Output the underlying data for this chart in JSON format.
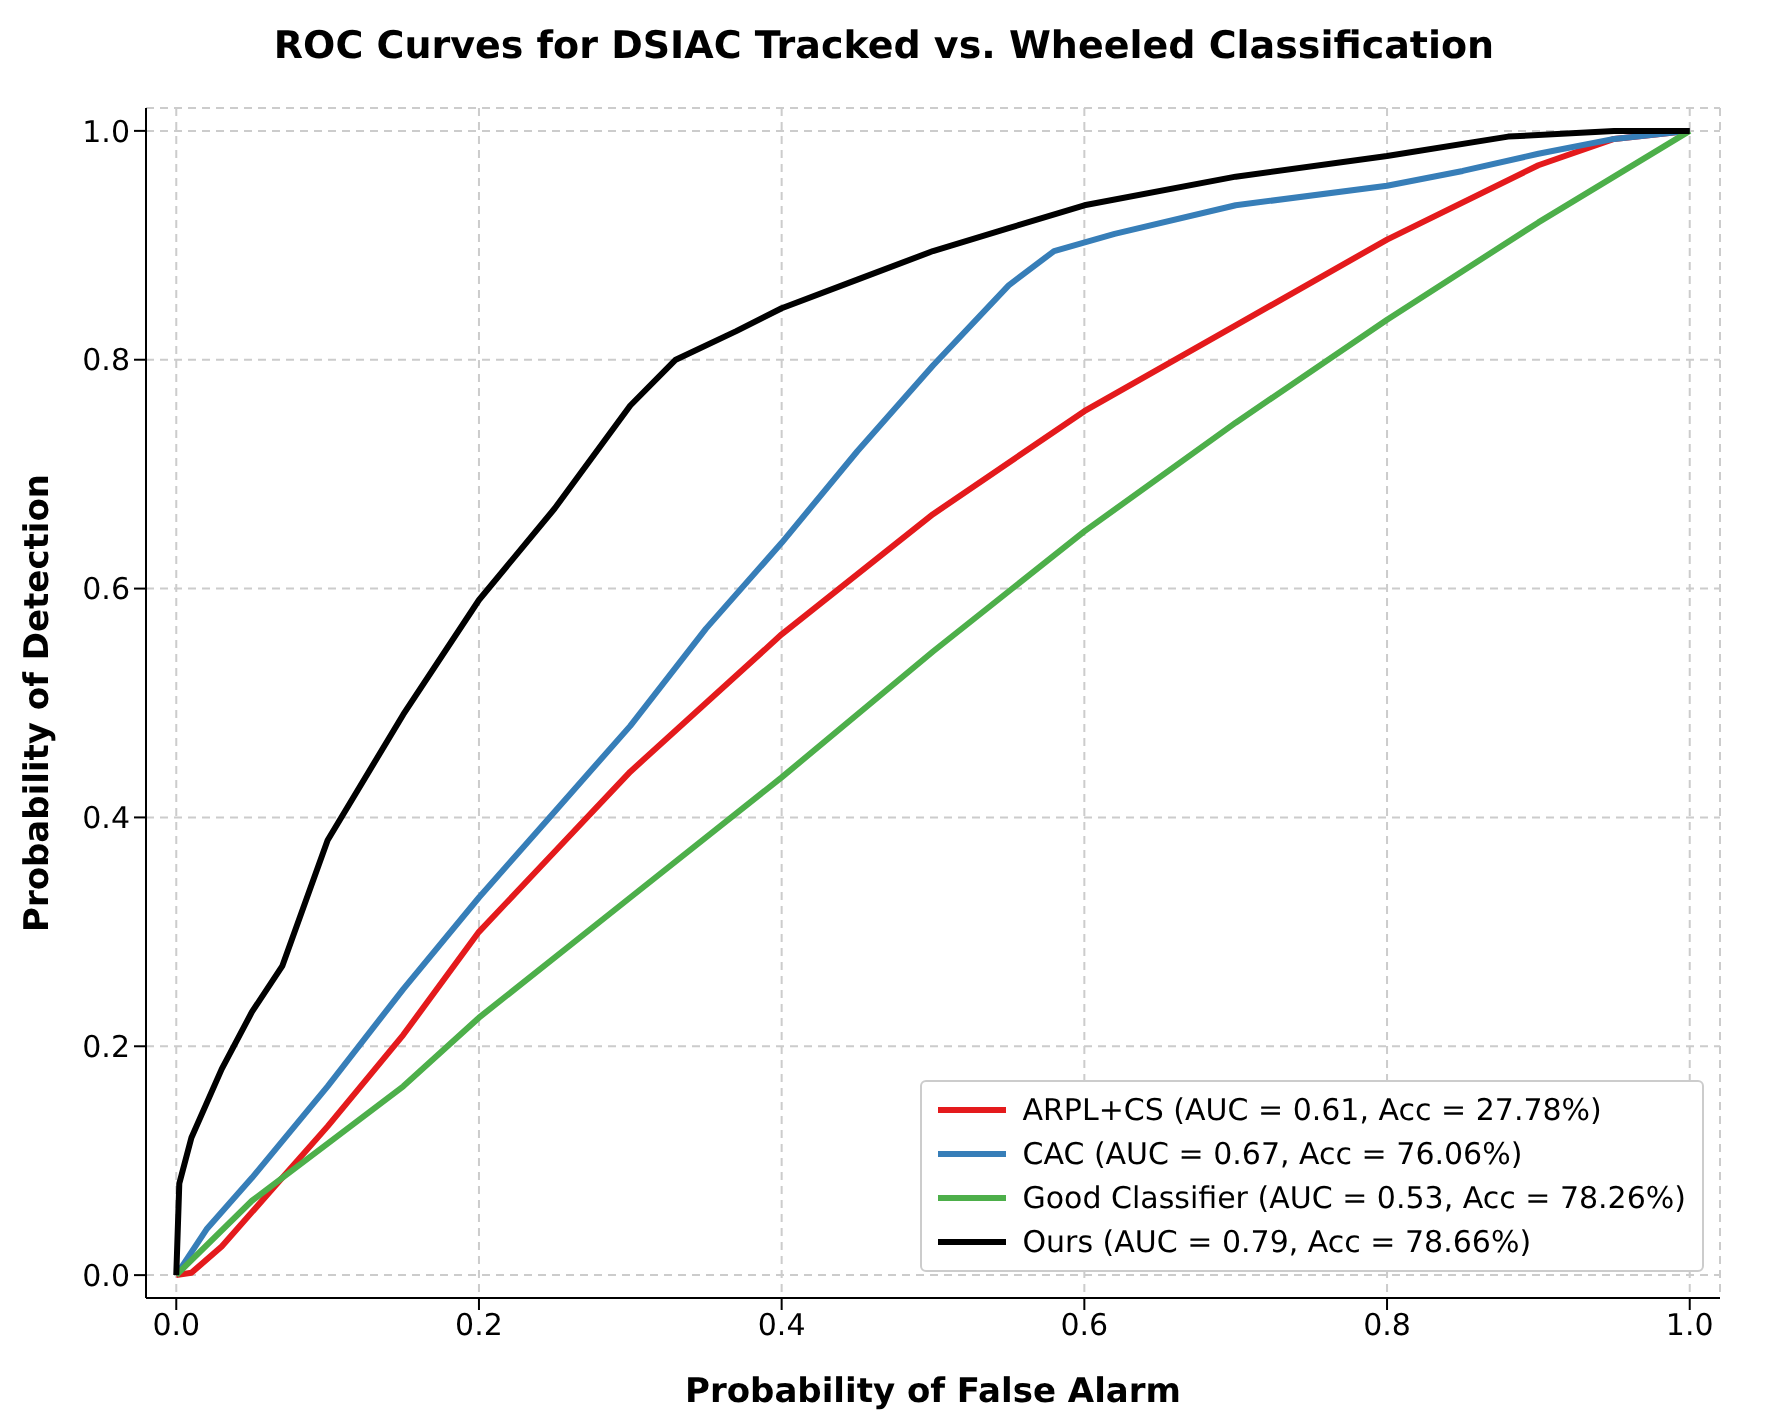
{
  "chart_data": {
    "type": "line",
    "title": "ROC Curves for DSIAC Tracked vs. Wheeled Classification",
    "xlabel": "Probability of False Alarm",
    "ylabel": "Probability of Detection",
    "xlim": [
      -0.02,
      1.02
    ],
    "ylim": [
      -0.02,
      1.02
    ],
    "xticks": [
      {
        "value": 0,
        "label": "0.0"
      },
      0.2,
      0.4,
      0.6,
      0.8,
      {
        "value": 1,
        "label": "1.0"
      }
    ],
    "yticks": [
      {
        "value": 0,
        "label": "0.0"
      },
      0.2,
      0.4,
      0.6,
      0.8,
      {
        "value": 1,
        "label": "1.0"
      }
    ],
    "grid": true,
    "legend": "bottom right",
    "marker": "none",
    "line_style": "solid",
    "series": [
      {
        "name": "ARPL+CS (AUC = 0.61, Acc = 27.78%)",
        "color": "#e41a1c",
        "x": [
          0,
          0.01,
          0.03,
          0.06,
          0.1,
          0.15,
          0.2,
          0.25,
          0.3,
          0.35,
          0.4,
          0.5,
          0.6,
          0.7,
          0.8,
          0.9,
          0.95,
          1
        ],
        "values": [
          0,
          0.002,
          0.025,
          0.07,
          0.13,
          0.21,
          0.3,
          0.37,
          0.44,
          0.5,
          0.56,
          0.665,
          0.755,
          0.83,
          0.905,
          0.97,
          0.993,
          1
        ]
      },
      {
        "name": "CAC (AUC = 0.67, Acc = 76.06%)",
        "color": "#377eb8",
        "x": [
          0,
          0.02,
          0.05,
          0.1,
          0.15,
          0.2,
          0.25,
          0.3,
          0.35,
          0.4,
          0.45,
          0.5,
          0.55,
          0.58,
          0.62,
          0.7,
          0.8,
          0.85,
          0.9,
          0.95,
          1
        ],
        "values": [
          0,
          0.04,
          0.085,
          0.165,
          0.25,
          0.33,
          0.405,
          0.48,
          0.565,
          0.64,
          0.72,
          0.795,
          0.865,
          0.895,
          0.91,
          0.935,
          0.952,
          0.965,
          0.98,
          0.993,
          1
        ]
      },
      {
        "name": "Good Classifier (AUC = 0.53, Acc = 78.26%)",
        "color": "#4daf4a",
        "x": [
          0,
          0.05,
          0.1,
          0.15,
          0.2,
          0.3,
          0.4,
          0.5,
          0.6,
          0.7,
          0.8,
          0.9,
          1
        ],
        "values": [
          0,
          0.065,
          0.115,
          0.165,
          0.225,
          0.33,
          0.435,
          0.545,
          0.65,
          0.745,
          0.835,
          0.92,
          1
        ]
      },
      {
        "name": "Ours (AUC = 0.79, Acc = 78.66%)",
        "color": "#000000",
        "x": [
          0,
          0.002,
          0.01,
          0.03,
          0.05,
          0.07,
          0.1,
          0.15,
          0.2,
          0.25,
          0.3,
          0.33,
          0.37,
          0.4,
          0.45,
          0.5,
          0.55,
          0.6,
          0.7,
          0.8,
          0.88,
          0.95,
          1
        ],
        "values": [
          0,
          0.08,
          0.12,
          0.18,
          0.23,
          0.27,
          0.38,
          0.49,
          0.59,
          0.67,
          0.76,
          0.8,
          0.825,
          0.845,
          0.87,
          0.895,
          0.915,
          0.935,
          0.96,
          0.978,
          0.995,
          1,
          1
        ]
      }
    ]
  }
}
